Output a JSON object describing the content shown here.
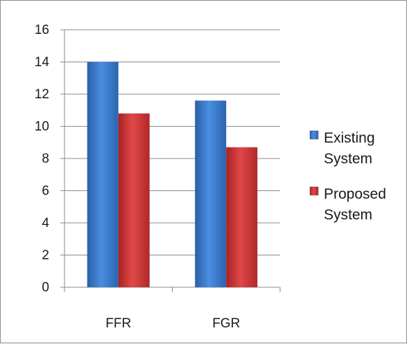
{
  "chart_data": {
    "type": "bar",
    "categories": [
      "FFR",
      "FGR"
    ],
    "series": [
      {
        "name": "Existing System",
        "legend_lines": [
          "Existing",
          "System"
        ],
        "values": [
          14,
          11.6
        ],
        "color": "#3f7fd4"
      },
      {
        "name": "Proposed System",
        "legend_lines": [
          "Proposed",
          "System"
        ],
        "values": [
          10.8,
          8.7
        ],
        "color": "#d83c3c"
      }
    ],
    "ylim": [
      0,
      16
    ],
    "yticks": [
      "0",
      "2",
      "4",
      "6",
      "8",
      "10",
      "12",
      "14",
      "16"
    ],
    "grid": true,
    "legend_position": "right",
    "title": "",
    "xlabel": "",
    "ylabel": ""
  }
}
